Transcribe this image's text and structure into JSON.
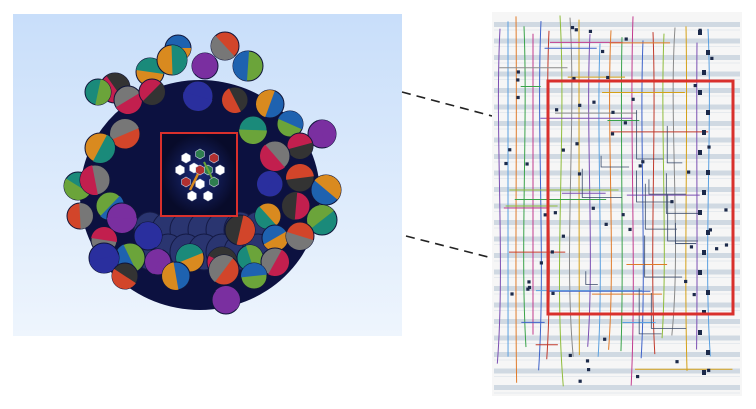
{
  "colors": {
    "viewport_top": "#c8defa",
    "viewport_bottom": "#eef5fd",
    "bundle_dark": "#0c1140",
    "highlight_box": "#d9302c",
    "connector": "#222222",
    "schematic_bg": "#f6f6f6",
    "schematic_bar": "#c9d3de",
    "node_dark": "#1c2a4a"
  },
  "cap_palette": [
    "#1e62b0",
    "#d2452a",
    "#6ba43a",
    "#7a2fa0",
    "#d98a1f",
    "#c21f4e",
    "#1a8a7a",
    "#777777",
    "#2a2f9e",
    "#333333"
  ],
  "wire_palette": [
    "#7b4fb2",
    "#5aa0e0",
    "#e07b2a",
    "#3aa34a",
    "#c23b8e",
    "#3e62c9",
    "#c0392b",
    "#8fbc3b",
    "#8a8a8a",
    "#d4a017"
  ],
  "icons": [
    "wire-bundle-3d-view",
    "zoom-highlight-box",
    "zoom-connector-line",
    "wiring-schematic-view"
  ]
}
